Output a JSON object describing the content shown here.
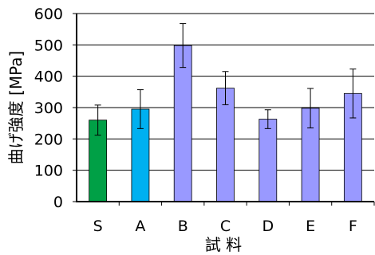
{
  "chart_data": {
    "type": "bar",
    "title": "",
    "xlabel": "試 料",
    "ylabel": "曲げ強度 [MPa]",
    "categories": [
      "S",
      "A",
      "B",
      "C",
      "D",
      "E",
      "F"
    ],
    "values": [
      260,
      295,
      498,
      362,
      263,
      298,
      345
    ],
    "errors": [
      48,
      62,
      70,
      53,
      30,
      63,
      78
    ],
    "colors": [
      "#00A046",
      "#00B0F0",
      "#9999FF",
      "#9999FF",
      "#9999FF",
      "#9999FF",
      "#9999FF"
    ],
    "ylim": [
      0,
      600
    ],
    "yticks": [
      0,
      100,
      200,
      300,
      400,
      500,
      600
    ],
    "grid": "horizontal"
  }
}
